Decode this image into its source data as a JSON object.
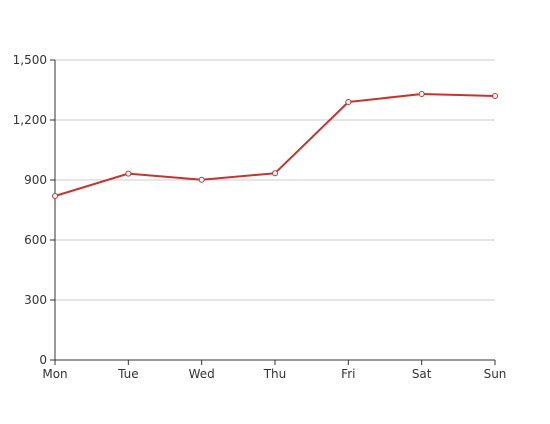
{
  "chart_data": {
    "type": "line",
    "categories": [
      "Mon",
      "Tue",
      "Wed",
      "Thu",
      "Fri",
      "Sat",
      "Sun"
    ],
    "series": [
      {
        "values": [
          820,
          932,
          901,
          934,
          1290,
          1330,
          1320
        ]
      }
    ],
    "ylim": [
      0,
      1500
    ],
    "yticks": [
      0,
      300,
      600,
      900,
      1200,
      1500
    ],
    "ytick_labels": [
      "0",
      "300",
      "600",
      "900",
      "1,200",
      "1,500"
    ],
    "grid": true,
    "colors": {
      "line": "#c23531",
      "grid": "#cccccc",
      "axis": "#333333",
      "marker_fill": "#ffffff"
    }
  }
}
